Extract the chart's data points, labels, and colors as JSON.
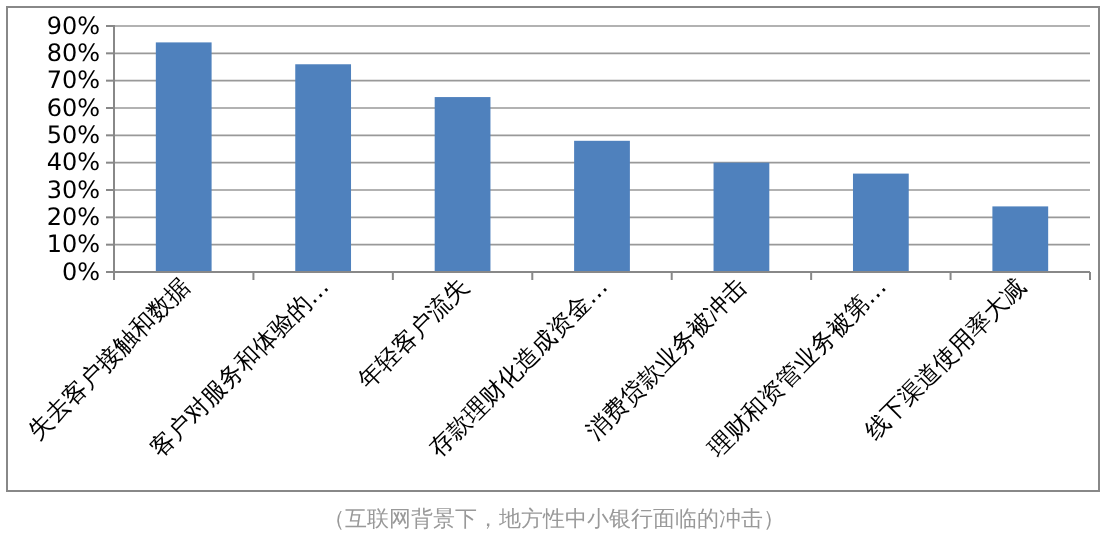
{
  "chart_data": {
    "type": "bar",
    "categories": [
      "失去客户接触和数据",
      "客户对服务和体验的…",
      "年轻客户流失",
      "存款理财化造成资金…",
      "消费贷款业务被冲击",
      "理财和资管业务被第…",
      "线下渠道使用率大减"
    ],
    "values": [
      84,
      76,
      64,
      48,
      40,
      36,
      24
    ],
    "color": "#4f81bd",
    "ylim": [
      0,
      90
    ],
    "yticks": [
      {
        "value": 0,
        "label": "0%"
      },
      {
        "value": 10,
        "label": "10%"
      },
      {
        "value": 20,
        "label": "20%"
      },
      {
        "value": 30,
        "label": "30%"
      },
      {
        "value": 40,
        "label": "40%"
      },
      {
        "value": 50,
        "label": "50%"
      },
      {
        "value": 60,
        "label": "60%"
      },
      {
        "value": 70,
        "label": "70%"
      },
      {
        "value": 80,
        "label": "80%"
      },
      {
        "value": 90,
        "label": "90%"
      }
    ],
    "grid": "y",
    "annotations": [
      "（互联网背景下，地方性中小银行面临的冲击）"
    ]
  }
}
